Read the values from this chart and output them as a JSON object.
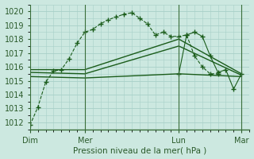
{
  "bg_color": "#cce8e0",
  "grid_color": "#a8cfc8",
  "line_color": "#1a5c1a",
  "marker_color": "#1a5c1a",
  "xlabel": "Pression niveau de la mer( hPa )",
  "ylim": [
    1011.5,
    1020.5
  ],
  "yticks": [
    1012,
    1013,
    1014,
    1015,
    1016,
    1017,
    1018,
    1019,
    1020
  ],
  "xlim": [
    0,
    168
  ],
  "vline_positions": [
    0,
    42,
    114,
    162
  ],
  "xtick_positions": [
    0,
    42,
    114,
    162
  ],
  "xtick_labels": [
    "Dim",
    "Mer",
    "Lun",
    "Mar"
  ],
  "series": [
    {
      "x": [
        0,
        6,
        12,
        18,
        24,
        30,
        36,
        42,
        48,
        54,
        60,
        66,
        72,
        78,
        84,
        90,
        96,
        102,
        108,
        114,
        120,
        126,
        132,
        138,
        144
      ],
      "y": [
        1011.8,
        1013.1,
        1014.9,
        1015.7,
        1015.8,
        1016.6,
        1017.7,
        1018.5,
        1018.7,
        1019.1,
        1019.4,
        1019.6,
        1019.8,
        1019.9,
        1019.5,
        1019.1,
        1018.3,
        1018.5,
        1018.2,
        1018.2,
        1018.3,
        1016.8,
        1016.0,
        1015.5,
        1015.5
      ],
      "style": "dashed",
      "marker": "+",
      "markersize": 4,
      "linewidth": 0.8,
      "zorder": 3
    },
    {
      "x": [
        0,
        42,
        114,
        162
      ],
      "y": [
        1015.8,
        1015.8,
        1018.0,
        1015.5
      ],
      "style": "solid",
      "marker": null,
      "markersize": 0,
      "linewidth": 1.0,
      "zorder": 2
    },
    {
      "x": [
        0,
        42,
        114,
        162
      ],
      "y": [
        1015.6,
        1015.5,
        1017.5,
        1015.4
      ],
      "style": "solid",
      "marker": null,
      "markersize": 0,
      "linewidth": 1.0,
      "zorder": 2
    },
    {
      "x": [
        0,
        42,
        114,
        162
      ],
      "y": [
        1015.3,
        1015.2,
        1015.5,
        1015.3
      ],
      "style": "solid",
      "marker": null,
      "markersize": 0,
      "linewidth": 1.0,
      "zorder": 2
    },
    {
      "x": [
        114,
        120,
        126,
        132,
        138,
        144,
        150,
        156,
        162
      ],
      "y": [
        1015.5,
        1018.3,
        1018.5,
        1018.2,
        1016.8,
        1015.6,
        1015.8,
        1014.4,
        1015.5
      ],
      "style": "solid",
      "marker": "+",
      "markersize": 4,
      "linewidth": 0.8,
      "zorder": 3
    }
  ]
}
